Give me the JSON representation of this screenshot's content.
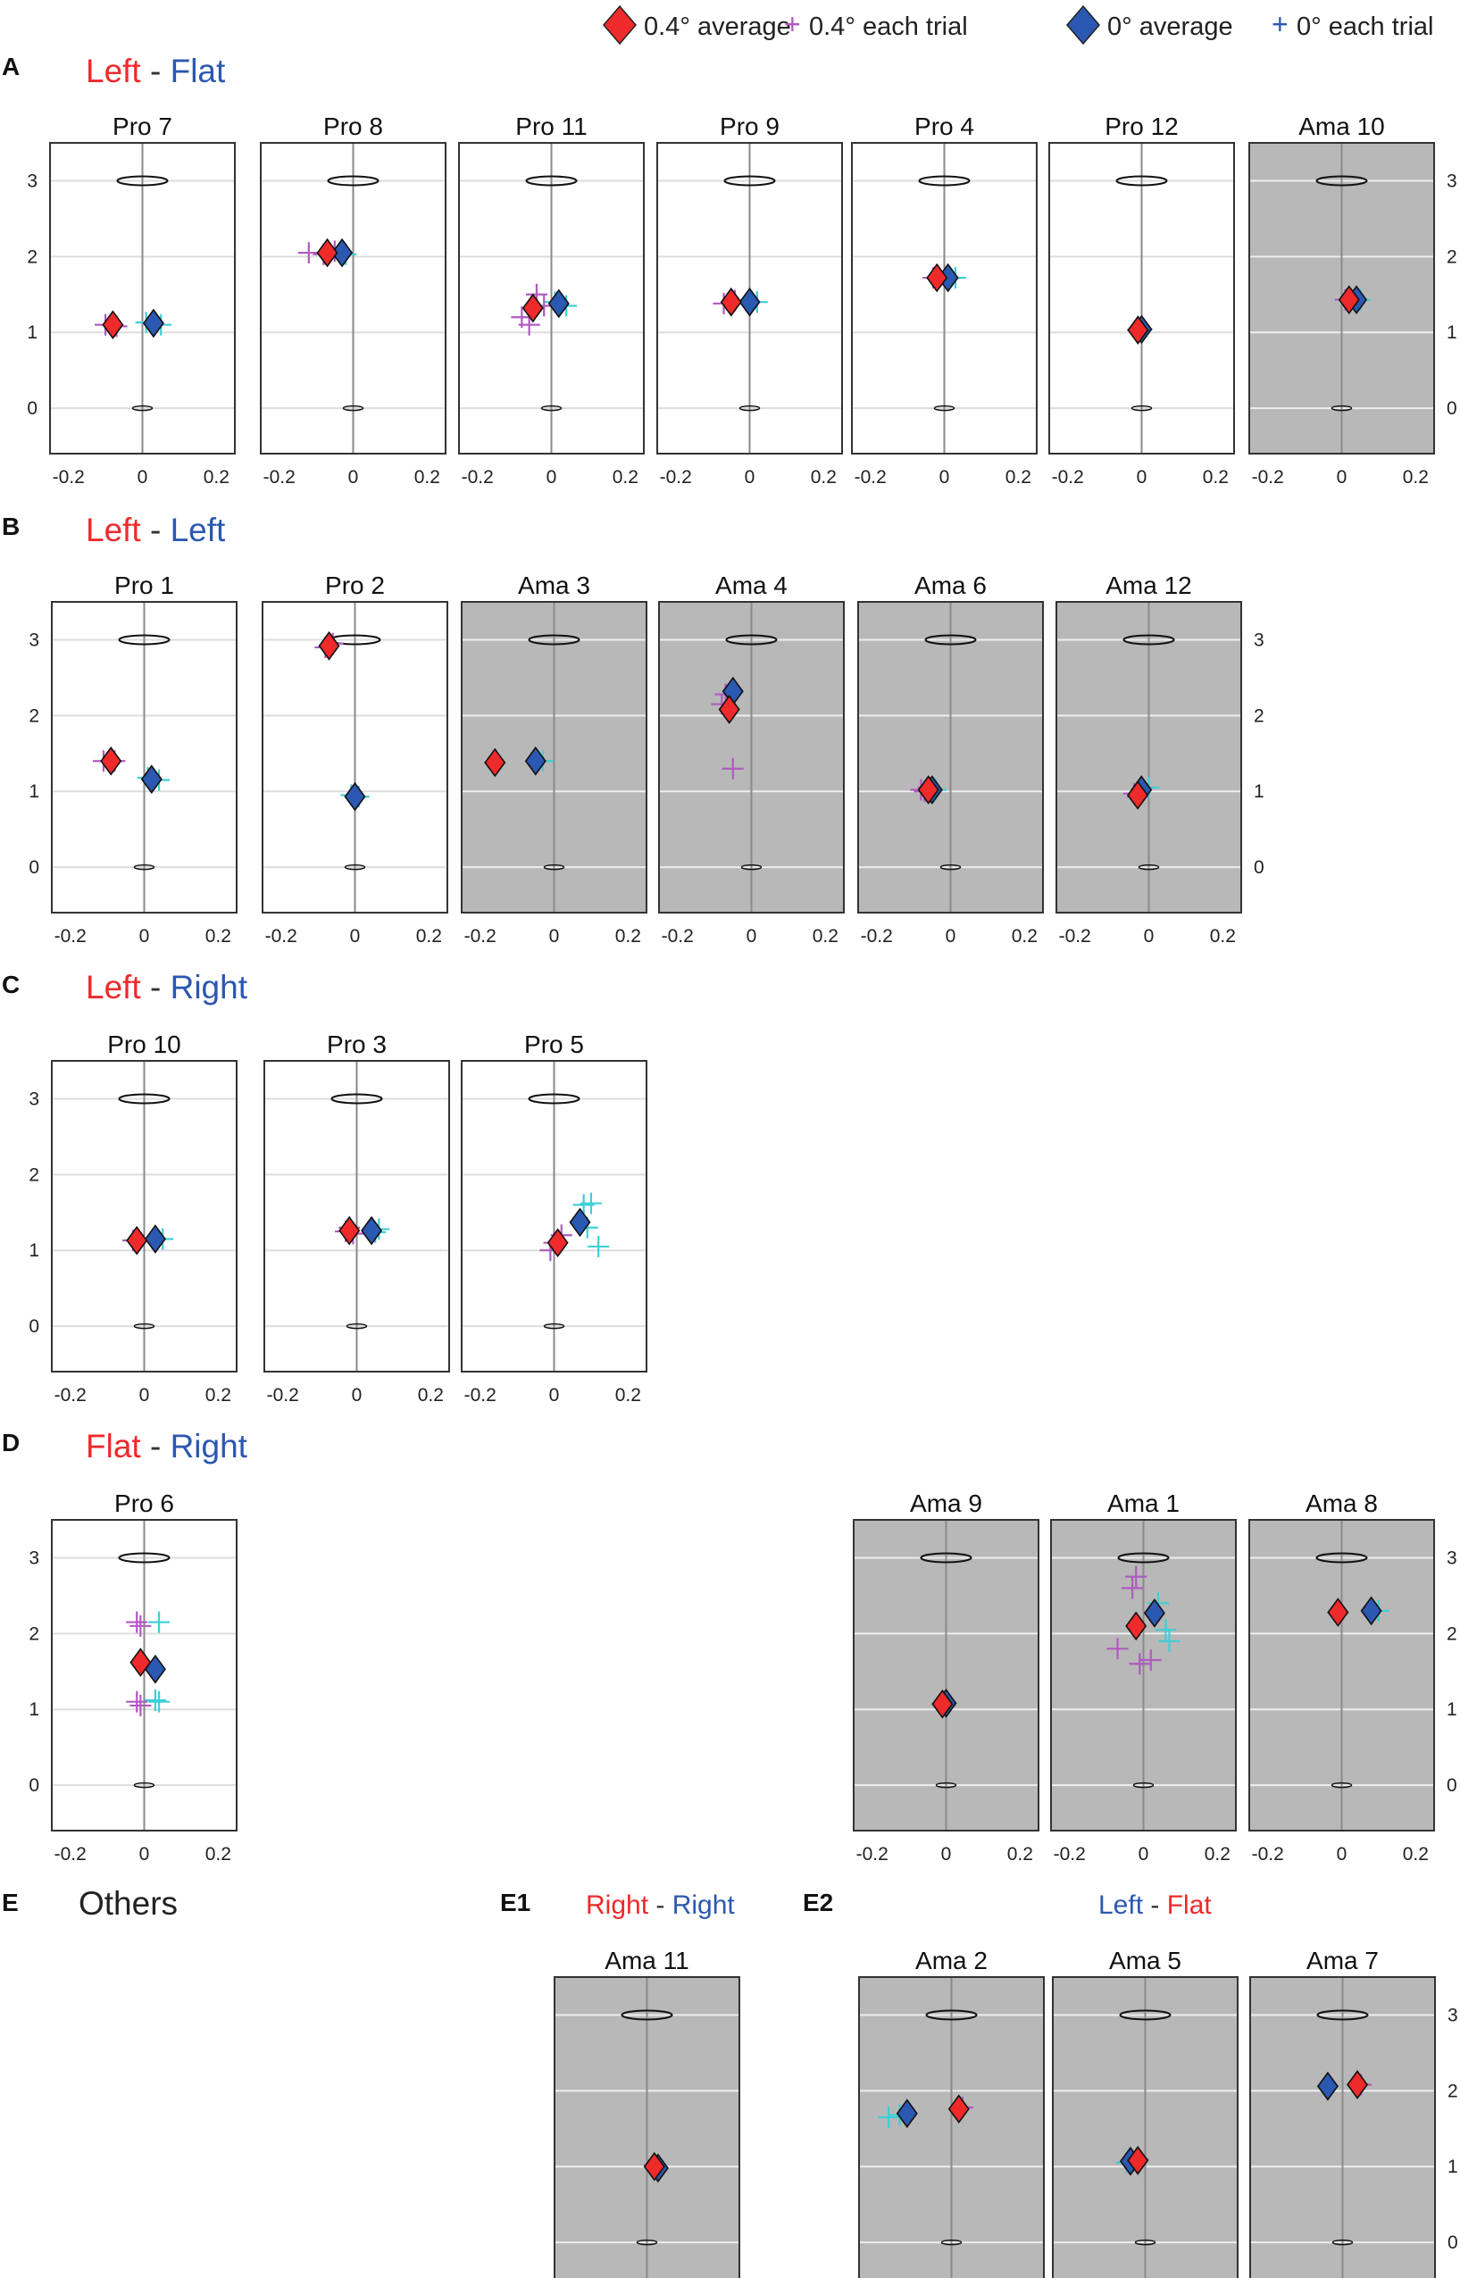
{
  "colors": {
    "red": "#ee2a2a",
    "blue": "#2b58b0",
    "magenta": "#b05ac0",
    "cyan": "#3fcfd6",
    "gray_bg": "#b8b8b8",
    "grid_white": "#eeeeee",
    "grid_gray": "#dddddd",
    "stem": "#8a8a8a"
  },
  "legend": {
    "red_avg": "0.4° average",
    "red_trial": "0.4° each trial",
    "blue_avg": "0° average",
    "blue_trial": "0° each trial",
    "trial_glyph": "+"
  },
  "sections": [
    {
      "letter": "A",
      "title_red": "Left",
      "sep": " - ",
      "title_blue": "Flat"
    },
    {
      "letter": "B",
      "title_red": "Left",
      "sep": " - ",
      "title_blue": "Left"
    },
    {
      "letter": "C",
      "title_red": "Left",
      "sep": " - ",
      "title_blue": "Right"
    },
    {
      "letter": "D",
      "title_red": "Flat",
      "sep": " - ",
      "title_blue": "Right"
    },
    {
      "letter": "E",
      "title": "Others"
    },
    {
      "letter": "E1",
      "title_red": "Right",
      "sep": " - ",
      "title_blue": "Right"
    },
    {
      "letter": "E2",
      "title_blue": "Left",
      "sep": " - ",
      "title_red": "Flat"
    }
  ],
  "axis": {
    "xlim": [
      -0.25,
      0.25
    ],
    "ylim": [
      -0.6,
      3.5
    ],
    "xticks": [
      -0.2,
      0,
      0.2
    ],
    "xtick_labels": [
      "-0.2",
      "0",
      "0.2"
    ],
    "yticks": [
      0,
      1,
      2,
      3
    ],
    "ytick_labels": [
      "0",
      "1",
      "2",
      "3"
    ],
    "top_ellipse_y": 3,
    "bottom_ellipse_y": 0
  },
  "chart_data": [
    {
      "type": "scatter",
      "title": "Pro 7",
      "group": "A",
      "background": "white",
      "red_avg": [
        -0.08,
        1.1
      ],
      "blue_avg": [
        0.03,
        1.12
      ],
      "red_trials": [
        [
          -0.1,
          1.1
        ],
        [
          -0.07,
          1.08
        ]
      ],
      "blue_trials": [
        [
          0.05,
          1.1
        ],
        [
          0.01,
          1.13
        ]
      ]
    },
    {
      "type": "scatter",
      "title": "Pro 8",
      "group": "A",
      "background": "white",
      "red_avg": [
        -0.07,
        2.05
      ],
      "blue_avg": [
        -0.03,
        2.05
      ],
      "red_trials": [
        [
          -0.12,
          2.05
        ],
        [
          -0.08,
          2.03
        ],
        [
          -0.05,
          2.07
        ]
      ],
      "blue_trials": [
        [
          -0.02,
          2.03
        ]
      ]
    },
    {
      "type": "scatter",
      "title": "Pro 11",
      "group": "A",
      "background": "white",
      "red_avg": [
        -0.05,
        1.32
      ],
      "blue_avg": [
        0.02,
        1.38
      ],
      "red_trials": [
        [
          -0.08,
          1.2
        ],
        [
          -0.06,
          1.1
        ],
        [
          -0.04,
          1.5
        ],
        [
          -0.02,
          1.35
        ]
      ],
      "blue_trials": [
        [
          0.04,
          1.35
        ],
        [
          0.01,
          1.4
        ]
      ]
    },
    {
      "type": "scatter",
      "title": "Pro 9",
      "group": "A",
      "background": "white",
      "red_avg": [
        -0.05,
        1.4
      ],
      "blue_avg": [
        0.0,
        1.4
      ],
      "red_trials": [
        [
          -0.07,
          1.38
        ],
        [
          -0.04,
          1.42
        ]
      ],
      "blue_trials": [
        [
          0.02,
          1.4
        ]
      ]
    },
    {
      "type": "scatter",
      "title": "Pro 4",
      "group": "A",
      "background": "white",
      "red_avg": [
        -0.02,
        1.72
      ],
      "blue_avg": [
        0.01,
        1.72
      ],
      "red_trials": [
        [
          -0.03,
          1.72
        ]
      ],
      "blue_trials": [
        [
          0.03,
          1.72
        ]
      ]
    },
    {
      "type": "scatter",
      "title": "Pro 12",
      "group": "A",
      "background": "white",
      "red_avg": [
        -0.01,
        1.03
      ],
      "blue_avg": [
        0.0,
        1.04
      ],
      "red_trials": [
        [
          -0.01,
          1.03
        ]
      ],
      "blue_trials": [
        [
          0.0,
          1.04
        ]
      ]
    },
    {
      "type": "scatter",
      "title": "Ama 10",
      "group": "A",
      "background": "gray",
      "red_avg": [
        0.02,
        1.43
      ],
      "blue_avg": [
        0.04,
        1.43
      ],
      "red_trials": [
        [
          0.01,
          1.43
        ]
      ],
      "blue_trials": [
        [
          0.05,
          1.43
        ]
      ]
    },
    {
      "type": "scatter",
      "title": "Pro 1",
      "group": "B",
      "background": "white",
      "red_avg": [
        -0.09,
        1.4
      ],
      "blue_avg": [
        0.02,
        1.16
      ],
      "red_trials": [
        [
          -0.11,
          1.4
        ],
        [
          -0.08,
          1.4
        ]
      ],
      "blue_trials": [
        [
          0.04,
          1.15
        ],
        [
          0.01,
          1.18
        ]
      ]
    },
    {
      "type": "scatter",
      "title": "Pro 2",
      "group": "B",
      "background": "white",
      "red_avg": [
        -0.07,
        2.92
      ],
      "blue_avg": [
        0.0,
        0.93
      ],
      "red_trials": [
        [
          -0.08,
          2.9
        ],
        [
          -0.06,
          2.95
        ]
      ],
      "blue_trials": [
        [
          0.01,
          0.93
        ],
        [
          -0.01,
          0.95
        ]
      ]
    },
    {
      "type": "scatter",
      "title": "Ama 3",
      "group": "B",
      "background": "gray",
      "red_avg": [
        -0.16,
        1.38
      ],
      "blue_avg": [
        -0.05,
        1.4
      ],
      "red_trials": [
        [
          -0.16,
          1.38
        ]
      ],
      "blue_trials": [
        [
          -0.03,
          1.4
        ]
      ]
    },
    {
      "type": "scatter",
      "title": "Ama 4",
      "group": "B",
      "background": "gray",
      "red_avg": [
        -0.06,
        2.08
      ],
      "blue_avg": [
        -0.05,
        2.32
      ],
      "red_trials": [
        [
          -0.05,
          1.3
        ],
        [
          -0.07,
          2.28
        ],
        [
          -0.08,
          2.15
        ]
      ],
      "blue_trials": [
        [
          -0.05,
          2.3
        ]
      ]
    },
    {
      "type": "scatter",
      "title": "Ama 6",
      "group": "B",
      "background": "gray",
      "red_avg": [
        -0.06,
        1.02
      ],
      "blue_avg": [
        -0.05,
        1.02
      ],
      "red_trials": [
        [
          -0.07,
          1.0
        ],
        [
          -0.06,
          1.05
        ],
        [
          -0.08,
          1.02
        ]
      ],
      "blue_trials": [
        [
          -0.04,
          1.02
        ]
      ]
    },
    {
      "type": "scatter",
      "title": "Ama 12",
      "group": "B",
      "background": "gray",
      "red_avg": [
        -0.03,
        0.95
      ],
      "blue_avg": [
        -0.02,
        1.02
      ],
      "red_trials": [
        [
          -0.03,
          0.93
        ],
        [
          -0.04,
          0.97
        ]
      ],
      "blue_trials": [
        [
          0.0,
          1.05
        ]
      ]
    },
    {
      "type": "scatter",
      "title": "Pro 10",
      "group": "C",
      "background": "white",
      "red_avg": [
        -0.02,
        1.13
      ],
      "blue_avg": [
        0.03,
        1.15
      ],
      "red_trials": [
        [
          -0.03,
          1.13
        ]
      ],
      "blue_trials": [
        [
          0.05,
          1.15
        ]
      ]
    },
    {
      "type": "scatter",
      "title": "Pro 3",
      "group": "C",
      "background": "white",
      "red_avg": [
        -0.02,
        1.26
      ],
      "blue_avg": [
        0.04,
        1.26
      ],
      "red_trials": [
        [
          -0.03,
          1.25
        ],
        [
          -0.02,
          1.3
        ],
        [
          -0.01,
          1.22
        ]
      ],
      "blue_trials": [
        [
          0.06,
          1.28
        ],
        [
          0.05,
          1.24
        ]
      ]
    },
    {
      "type": "scatter",
      "title": "Pro 5",
      "group": "C",
      "background": "white",
      "red_avg": [
        0.01,
        1.1
      ],
      "blue_avg": [
        0.07,
        1.37
      ],
      "red_trials": [
        [
          0.0,
          1.1
        ],
        [
          -0.01,
          1.0
        ],
        [
          0.02,
          1.2
        ]
      ],
      "blue_trials": [
        [
          0.08,
          1.6
        ],
        [
          0.1,
          1.62
        ],
        [
          0.12,
          1.05
        ],
        [
          0.09,
          1.3
        ]
      ]
    },
    {
      "type": "scatter",
      "title": "Pro 6",
      "group": "D",
      "background": "white",
      "red_avg": [
        -0.01,
        1.62
      ],
      "blue_avg": [
        0.03,
        1.53
      ],
      "red_trials": [
        [
          -0.02,
          2.15
        ],
        [
          -0.01,
          2.1
        ],
        [
          -0.02,
          1.1
        ],
        [
          -0.01,
          1.05
        ]
      ],
      "blue_trials": [
        [
          0.04,
          2.15
        ],
        [
          0.04,
          1.1
        ],
        [
          0.03,
          1.12
        ]
      ]
    },
    {
      "type": "scatter",
      "title": "Ama 9",
      "group": "D",
      "background": "gray",
      "red_avg": [
        -0.01,
        1.07
      ],
      "blue_avg": [
        0.0,
        1.08
      ],
      "red_trials": [
        [
          -0.01,
          1.07
        ]
      ],
      "blue_trials": [
        [
          0.0,
          1.08
        ]
      ]
    },
    {
      "type": "scatter",
      "title": "Ama 1",
      "group": "D",
      "background": "gray",
      "red_avg": [
        -0.02,
        2.1
      ],
      "blue_avg": [
        0.03,
        2.27
      ],
      "red_trials": [
        [
          -0.03,
          2.6
        ],
        [
          -0.02,
          2.75
        ],
        [
          -0.07,
          1.8
        ],
        [
          -0.01,
          1.6
        ],
        [
          0.02,
          1.65
        ]
      ],
      "blue_trials": [
        [
          0.06,
          2.05
        ],
        [
          0.07,
          1.9
        ],
        [
          0.04,
          2.4
        ]
      ]
    },
    {
      "type": "scatter",
      "title": "Ama 8",
      "group": "D",
      "background": "gray",
      "red_avg": [
        -0.01,
        2.28
      ],
      "blue_avg": [
        0.08,
        2.3
      ],
      "red_trials": [
        [
          -0.01,
          2.28
        ]
      ],
      "blue_trials": [
        [
          0.1,
          2.3
        ]
      ]
    },
    {
      "type": "scatter",
      "title": "Ama 11",
      "group": "E1",
      "background": "gray",
      "red_avg": [
        0.02,
        1.0
      ],
      "blue_avg": [
        0.03,
        0.98
      ],
      "red_trials": [
        [
          0.02,
          1.02
        ]
      ],
      "blue_trials": [
        [
          0.03,
          0.97
        ]
      ]
    },
    {
      "type": "scatter",
      "title": "Ama 2",
      "group": "E2",
      "background": "gray",
      "red_avg": [
        0.02,
        1.76
      ],
      "blue_avg": [
        -0.12,
        1.7
      ],
      "red_trials": [
        [
          0.03,
          1.78
        ]
      ],
      "blue_trials": [
        [
          -0.17,
          1.65
        ],
        [
          -0.14,
          1.68
        ]
      ]
    },
    {
      "type": "scatter",
      "title": "Ama 5",
      "group": "E2",
      "background": "gray",
      "red_avg": [
        -0.02,
        1.08
      ],
      "blue_avg": [
        -0.04,
        1.07
      ],
      "red_trials": [
        [
          -0.02,
          1.1
        ]
      ],
      "blue_trials": [
        [
          -0.05,
          1.05
        ]
      ]
    },
    {
      "type": "scatter",
      "title": "Ama 7",
      "group": "E2",
      "background": "gray",
      "red_avg": [
        0.04,
        2.08
      ],
      "blue_avg": [
        -0.04,
        2.06
      ],
      "red_trials": [
        [
          0.05,
          2.08
        ]
      ],
      "blue_trials": [
        [
          -0.04,
          2.06
        ]
      ]
    }
  ]
}
